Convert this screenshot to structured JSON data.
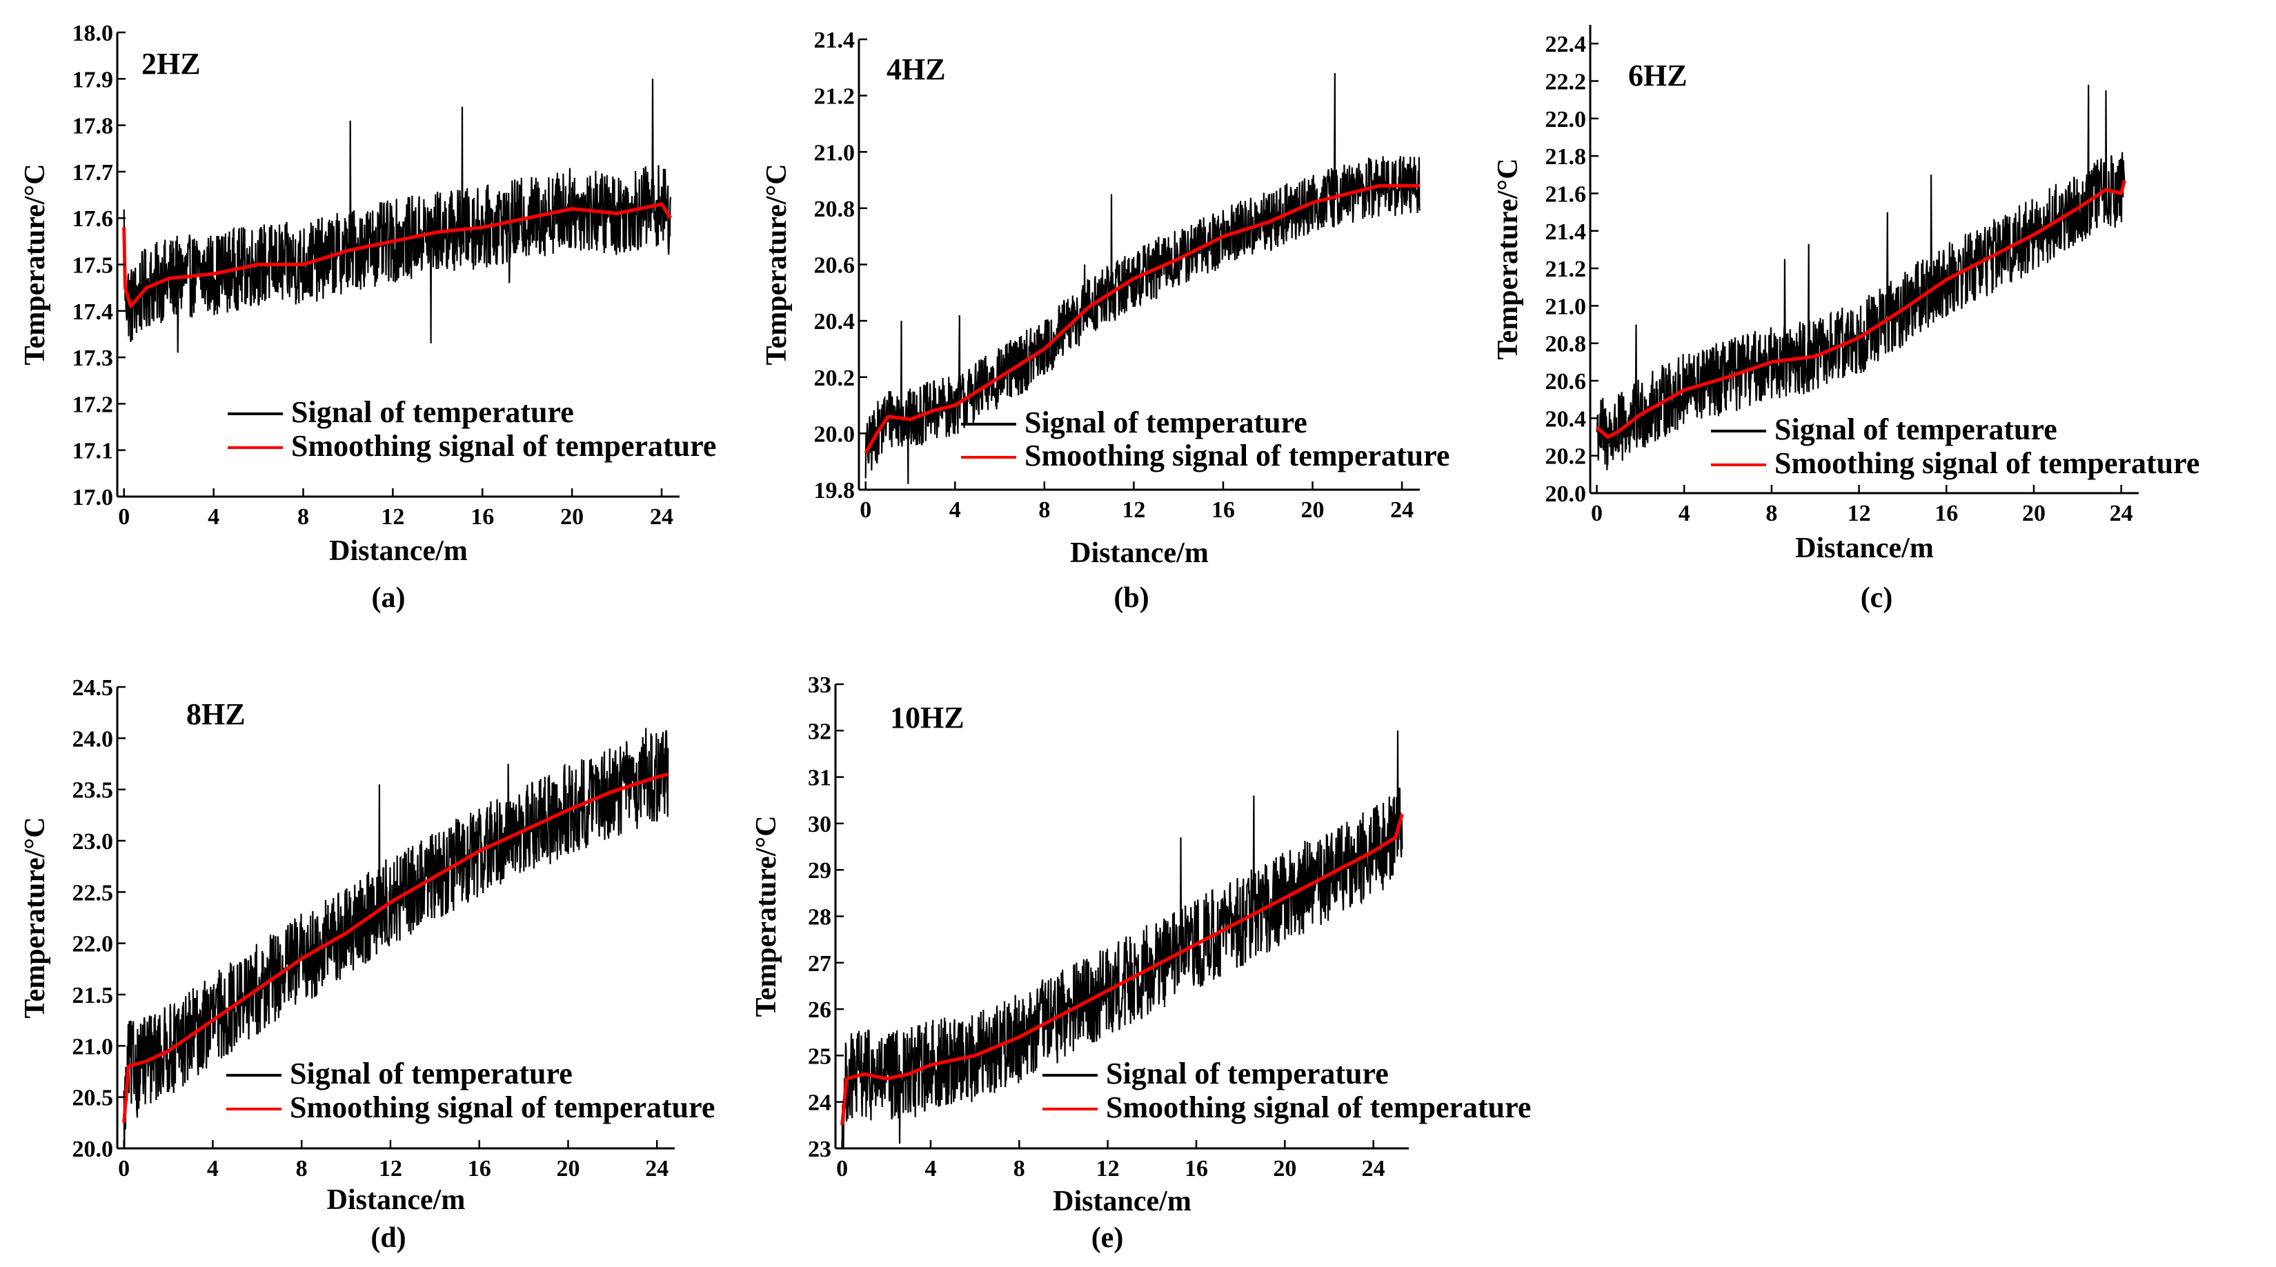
{
  "chart_data": [
    {
      "type": "line",
      "caption": "(a)",
      "title": "2HZ",
      "xlabel": "Distance/m",
      "ylabel": "Temperature/°C",
      "xlim": [
        -0.3,
        24.8
      ],
      "ylim": [
        17.0,
        18.0
      ],
      "xticks": [
        0,
        4,
        8,
        12,
        16,
        20,
        24
      ],
      "xtick_labels": [
        "0",
        "4",
        "8",
        "12",
        "16",
        "20",
        "24"
      ],
      "yticks": [
        17.0,
        17.1,
        17.2,
        17.3,
        17.4,
        17.5,
        17.6,
        17.7,
        17.8,
        17.9,
        18.0
      ],
      "ytick_labels": [
        "17.0",
        "17.1",
        "17.2",
        "17.3",
        "17.4",
        "17.5",
        "17.6",
        "17.7",
        "17.8",
        "17.9",
        "18.0"
      ],
      "legend": {
        "position": "lower-center",
        "entries": [
          "Signal of temperature",
          "Smoothing signal of temperature"
        ]
      },
      "series": [
        {
          "name": "Signal of temperature",
          "color": "#000000",
          "noise": 0.09,
          "spikes": [
            [
              10.1,
              17.81
            ],
            [
              13.7,
              17.33
            ],
            [
              15.1,
              17.84
            ],
            [
              23.6,
              17.9
            ],
            [
              2.4,
              17.31
            ],
            [
              17.2,
              17.46
            ]
          ]
        },
        {
          "name": "Smoothing signal of temperature",
          "color": "#ff0000",
          "points": [
            [
              0,
              17.58
            ],
            [
              0.05,
              17.45
            ],
            [
              0.3,
              17.41
            ],
            [
              1,
              17.45
            ],
            [
              2,
              17.47
            ],
            [
              4,
              17.48
            ],
            [
              6,
              17.5
            ],
            [
              8,
              17.5
            ],
            [
              10,
              17.53
            ],
            [
              12,
              17.55
            ],
            [
              14,
              17.57
            ],
            [
              16,
              17.58
            ],
            [
              18,
              17.6
            ],
            [
              20,
              17.62
            ],
            [
              22,
              17.61
            ],
            [
              24,
              17.63
            ],
            [
              24.4,
              17.6
            ]
          ]
        }
      ]
    },
    {
      "type": "line",
      "caption": "(b)",
      "title": "4HZ",
      "xlabel": "Distance/m",
      "ylabel": "Temperature/°C",
      "xlim": [
        -0.3,
        24.8
      ],
      "ylim": [
        19.8,
        21.4
      ],
      "xticks": [
        0,
        4,
        8,
        12,
        16,
        20,
        24
      ],
      "xtick_labels": [
        "0",
        "4",
        "8",
        "12",
        "16",
        "20",
        "24"
      ],
      "yticks": [
        19.8,
        20.0,
        20.2,
        20.4,
        20.6,
        20.8,
        21.0,
        21.2,
        21.4
      ],
      "ytick_labels": [
        "19.8",
        "20.0",
        "20.2",
        "20.4",
        "20.6",
        "20.8",
        "21.0",
        "21.2",
        "21.4"
      ],
      "legend": {
        "position": "lower-center",
        "entries": [
          "Signal of temperature",
          "Smoothing signal of temperature"
        ]
      },
      "series": [
        {
          "name": "Signal of temperature",
          "color": "#000000",
          "noise": 0.11,
          "spikes": [
            [
              21.0,
              21.28
            ],
            [
              1.6,
              20.4
            ],
            [
              1.9,
              19.82
            ],
            [
              4.2,
              20.42
            ],
            [
              9.8,
              20.6
            ],
            [
              11.0,
              20.85
            ]
          ]
        },
        {
          "name": "Smoothing signal of temperature",
          "color": "#ff0000",
          "points": [
            [
              0,
              19.93
            ],
            [
              0.5,
              20.0
            ],
            [
              1,
              20.06
            ],
            [
              2,
              20.05
            ],
            [
              3,
              20.08
            ],
            [
              4,
              20.1
            ],
            [
              6,
              20.2
            ],
            [
              8,
              20.3
            ],
            [
              10,
              20.45
            ],
            [
              12,
              20.55
            ],
            [
              14,
              20.62
            ],
            [
              16,
              20.7
            ],
            [
              18,
              20.75
            ],
            [
              20,
              20.82
            ],
            [
              22,
              20.86
            ],
            [
              23,
              20.88
            ],
            [
              24.8,
              20.88
            ]
          ]
        }
      ]
    },
    {
      "type": "line",
      "caption": "(c)",
      "title": "6HZ",
      "xlabel": "Distance/m",
      "ylabel": "Temperature/°C",
      "xlim": [
        -0.3,
        24.8
      ],
      "ylim": [
        20.0,
        22.5
      ],
      "xticks": [
        0,
        4,
        8,
        12,
        16,
        20,
        24
      ],
      "xtick_labels": [
        "0",
        "4",
        "8",
        "12",
        "16",
        "20",
        "24"
      ],
      "yticks": [
        20.0,
        20.2,
        20.4,
        20.6,
        20.8,
        21.0,
        21.2,
        21.4,
        21.6,
        21.8,
        22.0,
        22.2,
        22.4
      ],
      "ytick_labels": [
        "20.0",
        "20.2",
        "20.4",
        "20.6",
        "20.8",
        "21.0",
        "21.2",
        "21.4",
        "21.6",
        "21.8",
        "22.0",
        "22.2",
        "22.4"
      ],
      "legend": {
        "position": "lower-center",
        "entries": [
          "Signal of temperature",
          "Smoothing signal of temperature"
        ]
      },
      "series": [
        {
          "name": "Signal of temperature",
          "color": "#000000",
          "noise": 0.2,
          "spikes": [
            [
              9.7,
              21.33
            ],
            [
              8.6,
              21.25
            ],
            [
              13.3,
              21.5
            ],
            [
              22.5,
              22.18
            ],
            [
              23.3,
              22.15
            ],
            [
              1.8,
              20.9
            ],
            [
              15.3,
              21.7
            ]
          ]
        },
        {
          "name": "Smoothing signal of temperature",
          "color": "#ff0000",
          "points": [
            [
              0,
              20.35
            ],
            [
              0.5,
              20.3
            ],
            [
              1,
              20.33
            ],
            [
              2,
              20.42
            ],
            [
              4,
              20.55
            ],
            [
              6,
              20.62
            ],
            [
              8,
              20.7
            ],
            [
              10,
              20.73
            ],
            [
              12,
              20.83
            ],
            [
              14,
              20.98
            ],
            [
              16,
              21.14
            ],
            [
              18,
              21.26
            ],
            [
              20,
              21.38
            ],
            [
              22,
              21.52
            ],
            [
              23.3,
              21.62
            ],
            [
              24,
              21.6
            ],
            [
              24.15,
              21.67
            ]
          ]
        }
      ]
    },
    {
      "type": "line",
      "caption": "(d)",
      "title": "8HZ",
      "xlabel": "Distance/m",
      "ylabel": "Temperature/°C",
      "xlim": [
        -0.3,
        24.8
      ],
      "ylim": [
        20.0,
        24.5
      ],
      "xticks": [
        0,
        4,
        8,
        12,
        16,
        20,
        24
      ],
      "xtick_labels": [
        "0",
        "4",
        "8",
        "12",
        "16",
        "20",
        "24"
      ],
      "yticks": [
        20.0,
        20.5,
        21.0,
        21.5,
        22.0,
        22.5,
        23.0,
        23.5,
        24.0,
        24.5
      ],
      "ytick_labels": [
        "20.0",
        "20.5",
        "21.0",
        "21.5",
        "22.0",
        "22.5",
        "23.0",
        "23.5",
        "24.0",
        "24.5"
      ],
      "legend": {
        "position": "lower-center",
        "entries": [
          "Signal of temperature",
          "Smoothing signal of temperature"
        ]
      },
      "series": [
        {
          "name": "Signal of temperature",
          "color": "#000000",
          "noise": 0.45,
          "spikes": [
            [
              17.3,
              23.75
            ],
            [
              23.5,
              24.1
            ],
            [
              0.6,
              20.3
            ],
            [
              11.5,
              23.55
            ]
          ]
        },
        {
          "name": "Smoothing signal of temperature",
          "color": "#ff0000",
          "points": [
            [
              0,
              20.25
            ],
            [
              0.2,
              20.8
            ],
            [
              1,
              20.85
            ],
            [
              2,
              20.95
            ],
            [
              4,
              21.25
            ],
            [
              6,
              21.55
            ],
            [
              8,
              21.85
            ],
            [
              10,
              22.1
            ],
            [
              12,
              22.4
            ],
            [
              14,
              22.65
            ],
            [
              16,
              22.9
            ],
            [
              18,
              23.1
            ],
            [
              20,
              23.3
            ],
            [
              22,
              23.48
            ],
            [
              24,
              23.62
            ],
            [
              24.5,
              23.65
            ]
          ]
        }
      ]
    },
    {
      "type": "line",
      "caption": "(e)",
      "title": "10HZ",
      "xlabel": "Distance/m",
      "ylabel": "Temperature/°C",
      "xlim": [
        -0.3,
        25.6
      ],
      "ylim": [
        23,
        33
      ],
      "xticks": [
        0,
        4,
        8,
        12,
        16,
        20,
        24
      ],
      "xtick_labels": [
        "0",
        "4",
        "8",
        "12",
        "16",
        "20",
        "24"
      ],
      "yticks": [
        23,
        24,
        25,
        26,
        27,
        28,
        29,
        30,
        31,
        32,
        33
      ],
      "ytick_labels": [
        "23",
        "24",
        "25",
        "26",
        "27",
        "28",
        "29",
        "30",
        "31",
        "32",
        "33"
      ],
      "legend": {
        "position": "lower-center",
        "entries": [
          "Signal of temperature",
          "Smoothing signal of temperature"
        ]
      },
      "series": [
        {
          "name": "Signal of temperature",
          "color": "#000000",
          "noise": 1.0,
          "spikes": [
            [
              18.6,
              30.6
            ],
            [
              15.3,
              29.7
            ],
            [
              25.1,
              32.0
            ],
            [
              2.6,
              23.1
            ],
            [
              10.3,
              25.2
            ]
          ]
        },
        {
          "name": "Smoothing signal of temperature",
          "color": "#ff0000",
          "points": [
            [
              0,
              23.5
            ],
            [
              0.2,
              24.5
            ],
            [
              1,
              24.6
            ],
            [
              2,
              24.5
            ],
            [
              3,
              24.6
            ],
            [
              4,
              24.8
            ],
            [
              6,
              25.0
            ],
            [
              8,
              25.4
            ],
            [
              10,
              25.9
            ],
            [
              12,
              26.4
            ],
            [
              14,
              26.9
            ],
            [
              16,
              27.4
            ],
            [
              18,
              27.9
            ],
            [
              20,
              28.4
            ],
            [
              22,
              28.9
            ],
            [
              24,
              29.4
            ],
            [
              25,
              29.7
            ],
            [
              25.3,
              30.2
            ]
          ]
        }
      ]
    }
  ]
}
